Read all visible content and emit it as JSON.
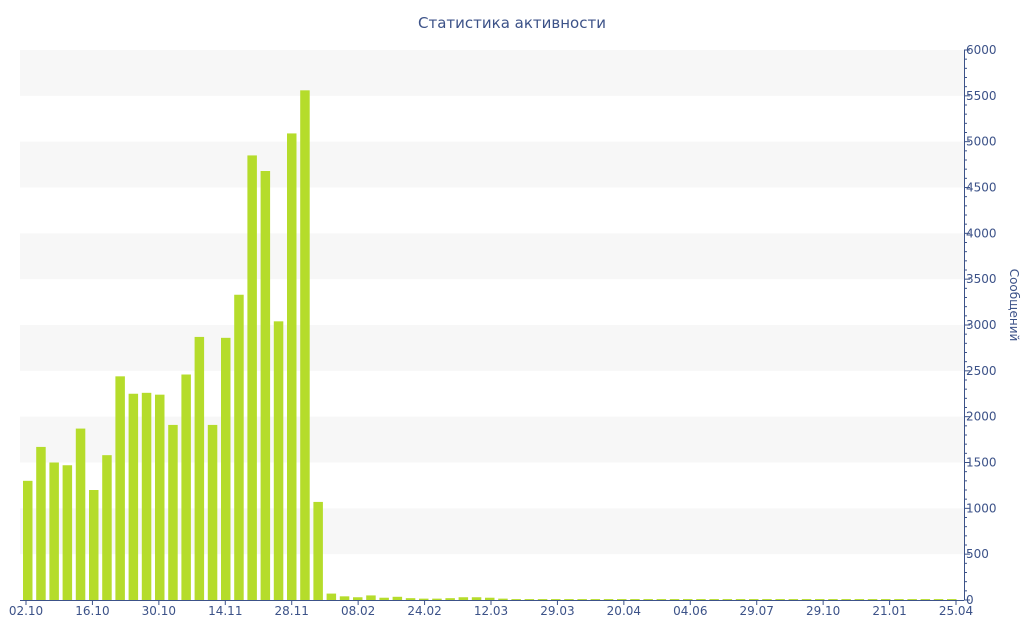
{
  "chart_data": {
    "type": "bar",
    "title": "Статистика активности",
    "xlabel": "",
    "ylabel": "Сообщений",
    "ylim": [
      0,
      6000
    ],
    "y_ticks": [
      0,
      500,
      1000,
      1500,
      2000,
      2500,
      3000,
      3500,
      4000,
      4500,
      5000,
      5500,
      6000
    ],
    "x_tick_labels": [
      "02.10",
      "16.10",
      "30.10",
      "14.11",
      "28.11",
      "08.02",
      "24.02",
      "12.03",
      "29.03",
      "20.04",
      "04.06",
      "29.07",
      "29.10",
      "21.01",
      "25.04"
    ],
    "y_axis_side": "right",
    "grid": "alternating horizontal bands",
    "bar_color": "#b5dc2b",
    "band_color": "#f7f7f7",
    "text_color": "#3c5288",
    "axis_color": "#3c5288",
    "values": [
      1300,
      1670,
      1500,
      1470,
      1870,
      1200,
      1580,
      2440,
      2250,
      2260,
      2240,
      1910,
      2460,
      2870,
      1910,
      2860,
      3330,
      4850,
      4680,
      3040,
      5090,
      5560,
      1070,
      70,
      40,
      30,
      50,
      25,
      35,
      20,
      15,
      15,
      20,
      30,
      30,
      25,
      15,
      10,
      10,
      10,
      10,
      10,
      10,
      10,
      10,
      10,
      10,
      10,
      10,
      10,
      10,
      10,
      10,
      10,
      10,
      10,
      10,
      10,
      10,
      10,
      10,
      10,
      10,
      10,
      10,
      10,
      10,
      10,
      10,
      10,
      10
    ]
  }
}
